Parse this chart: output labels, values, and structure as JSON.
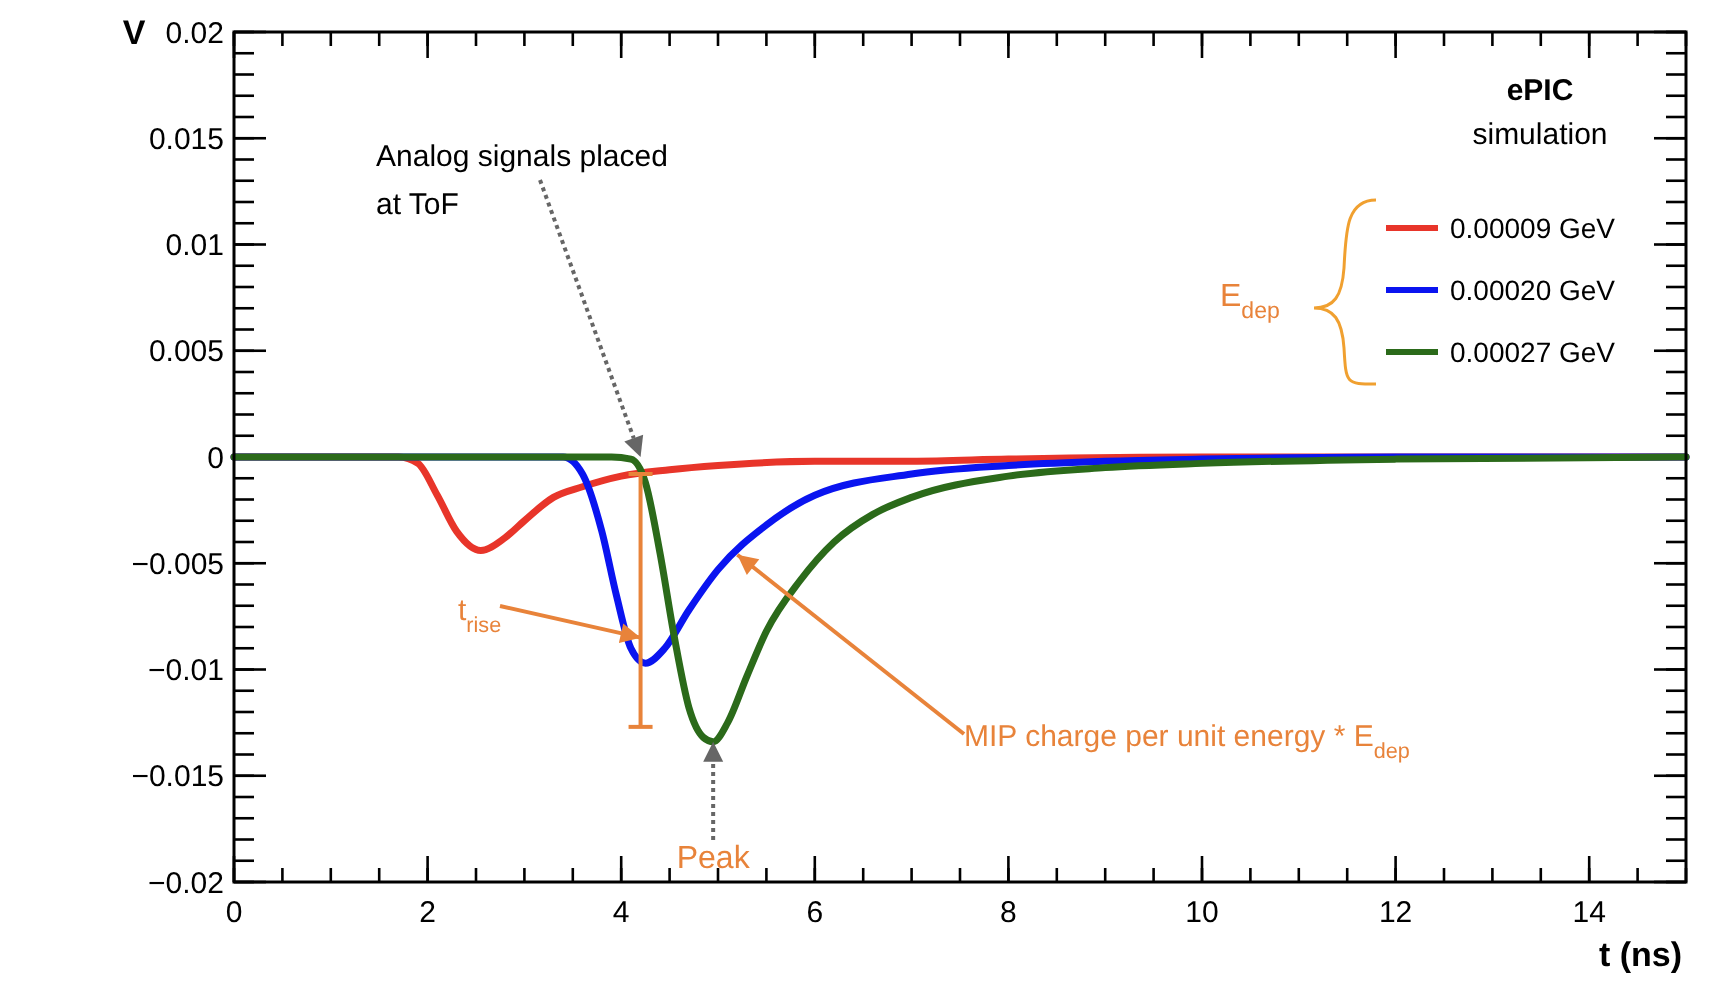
{
  "chart_data": {
    "type": "line",
    "xlabel": "t (ns)",
    "ylabel": "V",
    "legend_title": "E$_{dep}$",
    "legend": "top right",
    "grid": false,
    "marker": "none",
    "line_style": "solid",
    "xlim": [
      0,
      15
    ],
    "xticks": [
      0,
      2,
      4,
      6,
      8,
      10,
      12,
      14
    ],
    "ylim": [
      -0.02,
      0.02
    ],
    "yticks": [
      {
        "value": -0.02,
        "label": "−0.02"
      },
      {
        "value": -0.015,
        "label": "−0.015"
      },
      {
        "value": -0.01,
        "label": "−0.01"
      },
      {
        "value": -0.005,
        "label": "−0.005"
      },
      0,
      0.005,
      0.01,
      0.015,
      0.02
    ],
    "series": [
      {
        "name": "0.00009 GeV",
        "color": "#e8352a",
        "x": [
          0,
          1.7,
          1.9,
          2.1,
          2.3,
          2.55,
          2.8,
          3.0,
          3.3,
          3.6,
          4.0,
          4.5,
          5,
          6,
          7,
          8,
          10,
          12,
          15
        ],
        "values": [
          0,
          0,
          -0.0003,
          -0.0018,
          -0.0035,
          -0.0044,
          -0.0038,
          -0.003,
          -0.0019,
          -0.0014,
          -0.0009,
          -0.0006,
          -0.0004,
          -0.0002,
          -0.0002,
          -0.0001,
          0,
          0,
          0
        ]
      },
      {
        "name": "0.00020 GeV",
        "color": "#0a14f0",
        "x": [
          0,
          3.4,
          3.6,
          3.8,
          3.95,
          4.1,
          4.25,
          4.45,
          4.7,
          5.0,
          5.5,
          6,
          7,
          8,
          9,
          10,
          12,
          15
        ],
        "values": [
          0,
          0,
          -0.0008,
          -0.0035,
          -0.0065,
          -0.009,
          -0.0097,
          -0.009,
          -0.0072,
          -0.0053,
          -0.0032,
          -0.0018,
          -0.0008,
          -0.0004,
          -0.0002,
          -0.0001,
          0,
          0
        ]
      },
      {
        "name": "0.00027 GeV",
        "color": "#2b6a1a",
        "x": [
          0,
          3.9,
          4.1,
          4.25,
          4.4,
          4.55,
          4.7,
          4.85,
          4.95,
          5.1,
          5.3,
          5.5,
          5.85,
          6.2,
          6.6,
          7,
          8,
          9,
          10,
          12,
          15
        ],
        "values": [
          0,
          0,
          -0.0001,
          -0.0012,
          -0.0045,
          -0.0085,
          -0.0118,
          -0.0132,
          -0.0134,
          -0.0125,
          -0.0103,
          -0.0082,
          -0.0058,
          -0.004,
          -0.0027,
          -0.0019,
          -0.0009,
          -0.0005,
          -0.0003,
          -0.0001,
          0
        ]
      }
    ],
    "annotations": [
      "ePIC",
      "simulation",
      "Analog signals placed at ToF",
      {
        "text": "t$_{rise}$",
        "x": 4.2,
        "y": -0.0085
      },
      "Peak",
      {
        "text": "MIP charge per unit energy * E$_{dep}$",
        "x": 5.2,
        "y": -0.0046
      }
    ]
  }
}
